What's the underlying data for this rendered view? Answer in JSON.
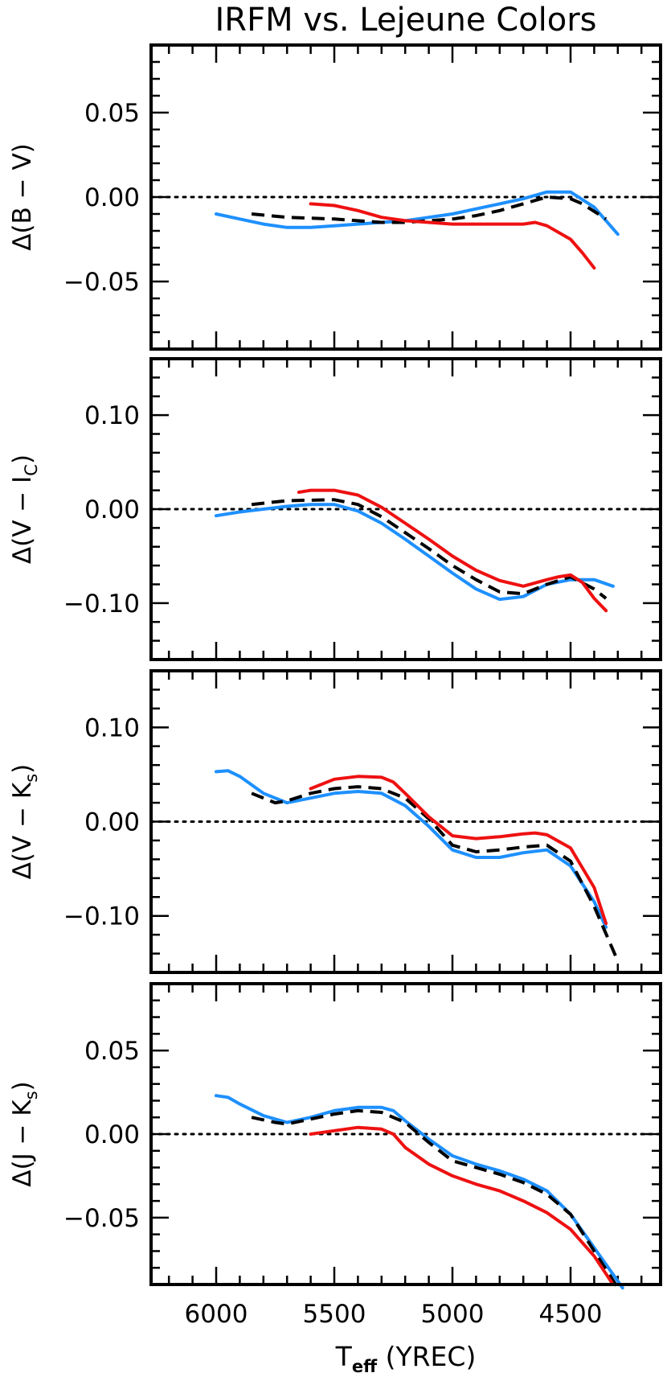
{
  "title": "IRFM vs. Lejeune Colors",
  "colors": {
    "blue": "#1e90ff",
    "red": "#ee1111",
    "black": "#000000"
  },
  "chart_data": [
    {
      "type": "line",
      "ylabel": "Δ(B − V)",
      "ylim": [
        -0.09,
        0.09
      ],
      "yticks": [
        0.05,
        0.0,
        -0.05
      ],
      "ytick_labels": [
        "0.05",
        "0.00",
        "−0.05"
      ],
      "minor_step": 0.01,
      "reference_line": 0.0,
      "series": [
        {
          "color": "blue",
          "style": "solid",
          "x": [
            6000,
            5900,
            5800,
            5700,
            5600,
            5500,
            5400,
            5300,
            5200,
            5100,
            5000,
            4900,
            4800,
            4700,
            4600,
            4500,
            4400,
            4300
          ],
          "y": [
            -0.01,
            -0.013,
            -0.016,
            -0.018,
            -0.018,
            -0.017,
            -0.016,
            -0.015,
            -0.014,
            -0.012,
            -0.01,
            -0.007,
            -0.004,
            -0.001,
            0.003,
            0.003,
            -0.006,
            -0.022
          ]
        },
        {
          "color": "black",
          "style": "dashed",
          "x": [
            5850,
            5700,
            5500,
            5300,
            5200,
            5100,
            5000,
            4900,
            4800,
            4700,
            4600,
            4500,
            4450,
            4350
          ],
          "y": [
            -0.01,
            -0.012,
            -0.013,
            -0.015,
            -0.015,
            -0.014,
            -0.013,
            -0.011,
            -0.008,
            -0.004,
            0.0,
            -0.001,
            -0.004,
            -0.013
          ]
        },
        {
          "color": "red",
          "style": "solid",
          "x": [
            5600,
            5500,
            5400,
            5300,
            5200,
            5100,
            5000,
            4900,
            4800,
            4700,
            4650,
            4600,
            4500,
            4450,
            4400
          ],
          "y": [
            -0.004,
            -0.005,
            -0.008,
            -0.012,
            -0.014,
            -0.015,
            -0.016,
            -0.016,
            -0.016,
            -0.016,
            -0.015,
            -0.017,
            -0.025,
            -0.033,
            -0.042
          ]
        }
      ]
    },
    {
      "type": "line",
      "ylabel": "Δ(V − I",
      "ylabel_sub": "C",
      "ylabel_end": ")",
      "ylim": [
        -0.16,
        0.16
      ],
      "yticks": [
        0.1,
        0.0,
        -0.1
      ],
      "ytick_labels": [
        "0.10",
        "0.00",
        "−0.10"
      ],
      "minor_step": 0.02,
      "reference_line": 0.0,
      "series": [
        {
          "color": "blue",
          "style": "solid",
          "x": [
            6000,
            5900,
            5800,
            5700,
            5600,
            5500,
            5400,
            5300,
            5200,
            5100,
            5000,
            4900,
            4800,
            4700,
            4600,
            4500,
            4400,
            4320
          ],
          "y": [
            -0.007,
            -0.003,
            0.0,
            0.003,
            0.005,
            0.005,
            -0.002,
            -0.015,
            -0.032,
            -0.05,
            -0.068,
            -0.085,
            -0.096,
            -0.093,
            -0.08,
            -0.075,
            -0.075,
            -0.082
          ]
        },
        {
          "color": "black",
          "style": "dashed",
          "x": [
            5850,
            5700,
            5500,
            5400,
            5300,
            5200,
            5100,
            5000,
            4900,
            4800,
            4700,
            4600,
            4500,
            4400,
            4350
          ],
          "y": [
            0.005,
            0.009,
            0.01,
            0.005,
            -0.008,
            -0.025,
            -0.042,
            -0.06,
            -0.075,
            -0.088,
            -0.09,
            -0.08,
            -0.072,
            -0.085,
            -0.095
          ]
        },
        {
          "color": "red",
          "style": "solid",
          "x": [
            5650,
            5600,
            5500,
            5400,
            5300,
            5200,
            5100,
            5000,
            4900,
            4800,
            4700,
            4600,
            4550,
            4500,
            4450,
            4400,
            4350
          ],
          "y": [
            0.018,
            0.02,
            0.02,
            0.015,
            0.002,
            -0.015,
            -0.032,
            -0.05,
            -0.065,
            -0.076,
            -0.082,
            -0.075,
            -0.072,
            -0.07,
            -0.078,
            -0.095,
            -0.108
          ]
        }
      ]
    },
    {
      "type": "line",
      "ylabel": "Δ(V − K",
      "ylabel_sub": "s",
      "ylabel_end": ")",
      "ylim": [
        -0.16,
        0.16
      ],
      "yticks": [
        0.1,
        0.0,
        -0.1
      ],
      "ytick_labels": [
        "0.10",
        "0.00",
        "−0.10"
      ],
      "minor_step": 0.02,
      "reference_line": 0.0,
      "series": [
        {
          "color": "blue",
          "style": "solid",
          "x": [
            6000,
            5950,
            5900,
            5800,
            5700,
            5600,
            5500,
            5400,
            5300,
            5200,
            5100,
            5000,
            4900,
            4800,
            4700,
            4600,
            4500,
            4400,
            4350
          ],
          "y": [
            0.053,
            0.054,
            0.048,
            0.03,
            0.02,
            0.025,
            0.03,
            0.032,
            0.03,
            0.017,
            -0.005,
            -0.03,
            -0.038,
            -0.038,
            -0.033,
            -0.03,
            -0.047,
            -0.085,
            -0.112
          ]
        },
        {
          "color": "black",
          "style": "dashed",
          "x": [
            5850,
            5750,
            5700,
            5600,
            5500,
            5400,
            5300,
            5200,
            5100,
            5000,
            4900,
            4800,
            4700,
            4600,
            4500,
            4400,
            4300
          ],
          "y": [
            0.03,
            0.02,
            0.022,
            0.03,
            0.035,
            0.037,
            0.035,
            0.025,
            0.003,
            -0.025,
            -0.032,
            -0.03,
            -0.027,
            -0.025,
            -0.042,
            -0.09,
            -0.148
          ]
        },
        {
          "color": "red",
          "style": "solid",
          "x": [
            5600,
            5500,
            5400,
            5300,
            5250,
            5200,
            5100,
            5000,
            4900,
            4800,
            4700,
            4650,
            4600,
            4500,
            4400,
            4350
          ],
          "y": [
            0.035,
            0.045,
            0.048,
            0.047,
            0.042,
            0.03,
            0.005,
            -0.015,
            -0.018,
            -0.016,
            -0.013,
            -0.012,
            -0.014,
            -0.028,
            -0.07,
            -0.108
          ]
        }
      ]
    },
    {
      "type": "line",
      "ylabel": "Δ(J − K",
      "ylabel_sub": "s",
      "ylabel_end": ")",
      "ylim": [
        -0.09,
        0.09
      ],
      "yticks": [
        0.05,
        0.0,
        -0.05
      ],
      "ytick_labels": [
        "0.05",
        "0.00",
        "−0.05"
      ],
      "minor_step": 0.01,
      "reference_line": 0.0,
      "xlabel": "T",
      "xlabel_sub": "eff",
      "xlabel_end": " (YREC)",
      "xticks": [
        6000,
        5500,
        5000,
        4500
      ],
      "xtick_labels": [
        "6000",
        "5500",
        "5000",
        "4500"
      ],
      "series": [
        {
          "color": "blue",
          "style": "solid",
          "x": [
            6000,
            5950,
            5900,
            5800,
            5700,
            5600,
            5500,
            5400,
            5300,
            5250,
            5200,
            5100,
            5000,
            4900,
            4800,
            4700,
            4600,
            4500,
            4400,
            4300,
            4280
          ],
          "y": [
            0.023,
            0.022,
            0.018,
            0.011,
            0.007,
            0.01,
            0.014,
            0.016,
            0.016,
            0.014,
            0.008,
            -0.003,
            -0.013,
            -0.018,
            -0.022,
            -0.027,
            -0.034,
            -0.048,
            -0.068,
            -0.088,
            -0.092
          ]
        },
        {
          "color": "black",
          "style": "dashed",
          "x": [
            5850,
            5750,
            5700,
            5600,
            5500,
            5400,
            5300,
            5200,
            5100,
            5000,
            4900,
            4800,
            4700,
            4600,
            4500,
            4400,
            4300
          ],
          "y": [
            0.01,
            0.007,
            0.006,
            0.009,
            0.012,
            0.014,
            0.013,
            0.007,
            -0.005,
            -0.016,
            -0.02,
            -0.024,
            -0.029,
            -0.036,
            -0.048,
            -0.07,
            -0.092
          ]
        },
        {
          "color": "red",
          "style": "solid",
          "x": [
            5600,
            5500,
            5400,
            5300,
            5250,
            5200,
            5100,
            5000,
            4900,
            4800,
            4700,
            4600,
            4500,
            4400,
            4320
          ],
          "y": [
            0.0,
            0.002,
            0.004,
            0.003,
            0.0,
            -0.008,
            -0.018,
            -0.025,
            -0.03,
            -0.034,
            -0.04,
            -0.047,
            -0.057,
            -0.073,
            -0.09
          ]
        }
      ]
    }
  ]
}
